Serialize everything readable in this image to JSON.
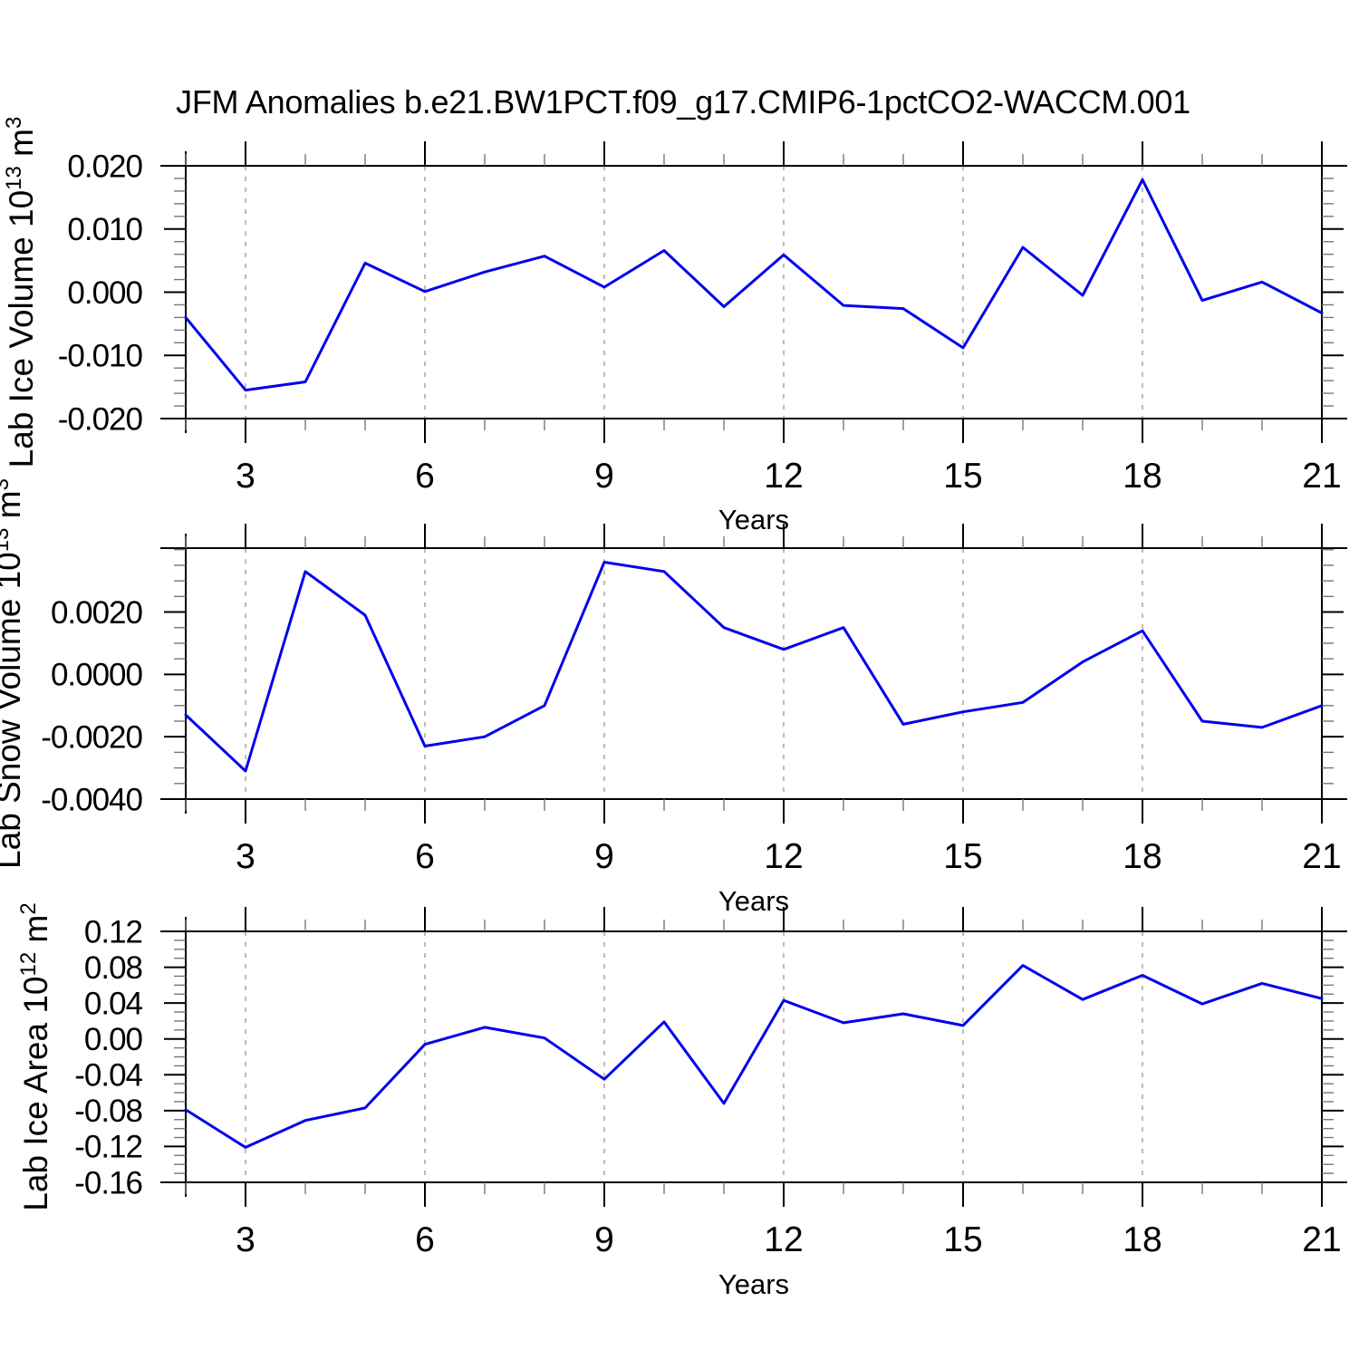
{
  "header": {
    "title": "JFM Anomalies b.e21.BW1PCT.f09_g17.CMIP6-1pctCO2-WACCM.001"
  },
  "style": {
    "line_color": "#0000ee",
    "axis_color": "#000000",
    "minor_tick_color": "#777777",
    "grid_color": "#999999",
    "background": "#ffffff"
  },
  "chart_data": [
    {
      "type": "line",
      "name": "lab-ice-volume",
      "ylabel_parts": [
        {
          "text": "Lab Ice Volume 10"
        },
        {
          "text": "13",
          "sup": true
        },
        {
          "text": " m"
        },
        {
          "text": "3",
          "sup": true
        }
      ],
      "xlabel": "Years",
      "x": [
        2,
        3,
        4,
        5,
        6,
        7,
        8,
        9,
        10,
        11,
        12,
        13,
        14,
        15,
        16,
        17,
        18,
        19,
        20,
        21
      ],
      "values": [
        -0.004,
        -0.0155,
        -0.0142,
        0.0046,
        0.0001,
        0.0032,
        0.0057,
        0.0008,
        0.0066,
        -0.0023,
        0.0059,
        -0.0021,
        -0.0026,
        -0.0088,
        0.0071,
        -0.0005,
        0.0178,
        -0.0013,
        0.0016,
        -0.0033
      ],
      "xlim": [
        2,
        21
      ],
      "xticks": [
        3,
        6,
        9,
        12,
        15,
        18,
        21
      ],
      "xminor_step": 1,
      "ylim": [
        -0.02,
        0.02
      ],
      "yticks": [
        {
          "v": 0.02,
          "label": "0.020"
        },
        {
          "v": 0.01,
          "label": "0.010"
        },
        {
          "v": 0.0,
          "label": "0.000"
        },
        {
          "v": -0.01,
          "label": "-0.010"
        },
        {
          "v": -0.02,
          "label": "-0.020"
        }
      ],
      "yminor_step": 0.002,
      "grid_at_xticks": true,
      "legend": null
    },
    {
      "type": "line",
      "name": "lab-snow-volume",
      "ylabel_parts": [
        {
          "text": "Lab Snow Volume 10"
        },
        {
          "text": "13",
          "sup": true
        },
        {
          "text": " m"
        },
        {
          "text": "3",
          "sup": true
        }
      ],
      "xlabel": "Years",
      "x": [
        2,
        3,
        4,
        5,
        6,
        7,
        8,
        9,
        10,
        11,
        12,
        13,
        14,
        15,
        16,
        17,
        18,
        19,
        20,
        21
      ],
      "values": [
        -0.0013,
        -0.0031,
        0.0033,
        0.0019,
        -0.0023,
        -0.002,
        -0.001,
        0.0036,
        0.0033,
        0.0015,
        0.0008,
        0.0015,
        -0.0016,
        -0.0012,
        -0.0009,
        0.0004,
        0.0014,
        -0.0015,
        -0.0017,
        -0.001
      ],
      "xlim": [
        2,
        21
      ],
      "xticks": [
        3,
        6,
        9,
        12,
        15,
        18,
        21
      ],
      "xminor_step": 1,
      "ylim": [
        -0.004,
        0.00405
      ],
      "yticks": [
        {
          "v": 0.002,
          "label": "0.0020"
        },
        {
          "v": 0.0,
          "label": "0.0000"
        },
        {
          "v": -0.002,
          "label": "-0.0020"
        },
        {
          "v": -0.004,
          "label": "-0.0040"
        }
      ],
      "yminor_step": 0.0005,
      "grid_at_xticks": true,
      "legend": null
    },
    {
      "type": "line",
      "name": "lab-ice-area",
      "ylabel_parts": [
        {
          "text": "Lab Ice Area 10"
        },
        {
          "text": "12",
          "sup": true
        },
        {
          "text": " m"
        },
        {
          "text": "2",
          "sup": true
        }
      ],
      "xlabel": "Years",
      "x": [
        2,
        3,
        4,
        5,
        6,
        7,
        8,
        9,
        10,
        11,
        12,
        13,
        14,
        15,
        16,
        17,
        18,
        19,
        20,
        21
      ],
      "values": [
        -0.079,
        -0.121,
        -0.091,
        -0.077,
        -0.006,
        0.013,
        0.001,
        -0.045,
        0.019,
        -0.072,
        0.043,
        0.018,
        0.028,
        0.015,
        0.082,
        0.044,
        0.071,
        0.039,
        0.062,
        0.045
      ],
      "xlim": [
        2,
        21
      ],
      "xticks": [
        3,
        6,
        9,
        12,
        15,
        18,
        21
      ],
      "xminor_step": 1,
      "ylim": [
        -0.16,
        0.12
      ],
      "yticks": [
        {
          "v": 0.12,
          "label": "0.12"
        },
        {
          "v": 0.08,
          "label": "0.08"
        },
        {
          "v": 0.04,
          "label": "0.04"
        },
        {
          "v": 0.0,
          "label": "0.00"
        },
        {
          "v": -0.04,
          "label": "-0.04"
        },
        {
          "v": -0.08,
          "label": "-0.08"
        },
        {
          "v": -0.12,
          "label": "-0.12"
        },
        {
          "v": -0.16,
          "label": "-0.16"
        }
      ],
      "yminor_step": 0.01,
      "grid_at_xticks": true,
      "legend": null
    }
  ]
}
